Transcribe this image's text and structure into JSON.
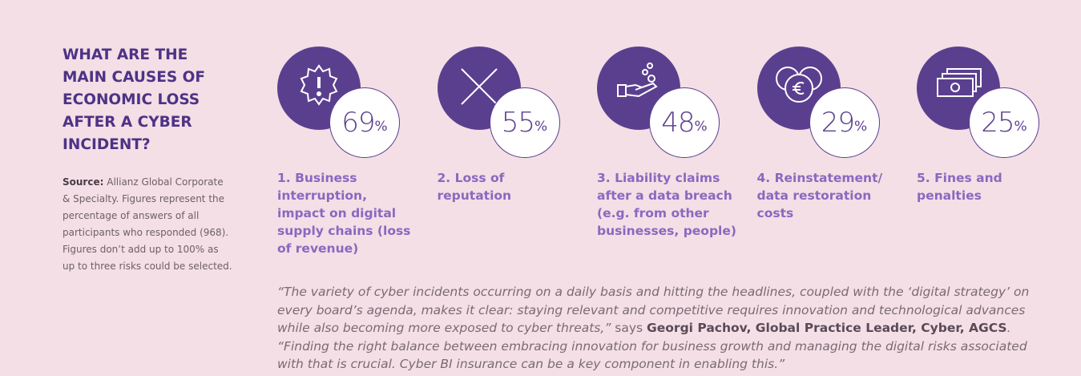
{
  "heading": "WHAT ARE THE MAIN CAUSES OF ECONOMIC LOSS AFTER A CYBER INCIDENT?",
  "source": {
    "label": "Source:",
    "text": "Allianz Global Corporate & Specialty. Figures represent the percentage of answers of all participants who responded (968). Figures don’t add up to 100% as up to three risks could be selected."
  },
  "unit": "%",
  "items": [
    {
      "percent": 69,
      "label": "1. Business interruption, impact on digital supply chains (loss of revenue)"
    },
    {
      "percent": 55,
      "label": "2. Loss of reputation"
    },
    {
      "percent": 48,
      "label": "3. Liability claims after a data breach (e.g. from other businesses, people)"
    },
    {
      "percent": 29,
      "label": "4. Reinstatement/ data restoration costs"
    },
    {
      "percent": 25,
      "label": "5. Fines and penalties"
    }
  ],
  "quote": {
    "part1": "“The variety of cyber incidents occurring on a daily basis and hitting the headlines, coupled with the ‘digital strategy’ on every board’s agenda, makes it clear: staying relevant and competitive requires innovation and technological advances while also becoming more exposed to cyber threats,”",
    "says": "says",
    "speaker": "Georgi Pachov, Global Practice Leader, Cyber, AGCS",
    "part2": ". “Finding the right balance between embracing innovation for business growth and managing the digital risks associated with that is crucial. Cyber BI insurance can be a key component in enabling this.”"
  }
}
